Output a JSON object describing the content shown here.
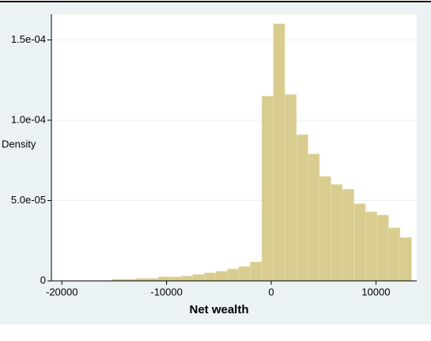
{
  "chart_data": {
    "type": "histogram",
    "x_label": "Net wealth",
    "y_label": "Density",
    "bins": [
      -15200,
      -14100,
      -13000,
      -11900,
      -10800,
      -9700,
      -8600,
      -7500,
      -6400,
      -5300,
      -4200,
      -3100,
      -2000,
      -900,
      200,
      1300,
      2400,
      3500,
      4600,
      5700,
      6800,
      7900,
      9000,
      10100,
      11200,
      12300,
      13400
    ],
    "values": [
      1e-06,
      1e-06,
      1.5e-06,
      1.5e-06,
      2.5e-06,
      2.5e-06,
      3e-06,
      4e-06,
      5e-06,
      6e-06,
      7.4e-06,
      8.9e-06,
      1.18e-05,
      0.000115,
      0.00016,
      0.000116,
      9.1e-05,
      7.9e-05,
      6.5e-05,
      6e-05,
      5.7e-05,
      4.8e-05,
      4.3e-05,
      4.1e-05,
      3.3e-05,
      2.7e-05
    ],
    "color": "#d8cc8f",
    "xlim": [
      -21000,
      13900
    ],
    "xticks": [
      -20000,
      -10000,
      0,
      10000
    ],
    "ylim": [
      0,
      0.000166
    ],
    "yticks": [
      0,
      {
        "value": 5e-05,
        "label": "5.0e-05"
      },
      {
        "value": 0.0001,
        "label": "1.0e-04"
      },
      {
        "value": 0.00015,
        "label": "1.5e-04"
      }
    ],
    "grid": true
  }
}
